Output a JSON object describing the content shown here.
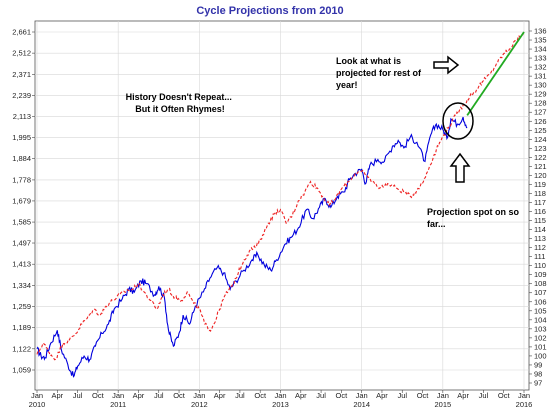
{
  "chart_data": {
    "type": "line",
    "title": "Cycle Projections from 2010",
    "xlabel": "",
    "ylabel_left": "",
    "ylabel_right": "",
    "grid": true,
    "x_range": [
      2010.0,
      2016.0
    ],
    "y_left_ticks": [
      "1,059",
      "1,122",
      "1,189",
      "1,259",
      "1,334",
      "1,413",
      "1,497",
      "1,585",
      "1,679",
      "1,778",
      "1,884",
      "1,995",
      "2,113",
      "2,239",
      "2,371",
      "2,512",
      "2,661"
    ],
    "y_right_ticks": [
      "97",
      "98",
      "99",
      "100",
      "101",
      "102",
      "103",
      "104",
      "105",
      "106",
      "107",
      "108",
      "109",
      "110",
      "111",
      "112",
      "113",
      "114",
      "115",
      "116",
      "117",
      "118",
      "119",
      "120",
      "121",
      "122",
      "123",
      "124",
      "125",
      "126",
      "127",
      "128",
      "129",
      "130",
      "131",
      "132",
      "133",
      "134",
      "135",
      "136"
    ],
    "x_months": [
      "Jan",
      "Apr",
      "Jul",
      "Oct",
      "Jan",
      "Apr",
      "Jul",
      "Oct",
      "Jan",
      "Apr",
      "Jul",
      "Oct",
      "Jan",
      "Apr",
      "Jul",
      "Oct",
      "Jan",
      "Apr",
      "Jul",
      "Oct",
      "Jan",
      "Apr",
      "Jul",
      "Oct",
      "Jan"
    ],
    "x_years": [
      "2010",
      "2011",
      "2012",
      "2013",
      "2014",
      "2015",
      "2016"
    ],
    "series": [
      {
        "color": "#0000dd",
        "style": "solid",
        "points": [
          [
            2010.0,
            1122
          ],
          [
            2010.05,
            1100
          ],
          [
            2010.1,
            1095
          ],
          [
            2010.17,
            1140
          ],
          [
            2010.25,
            1180
          ],
          [
            2010.3,
            1120
          ],
          [
            2010.38,
            1075
          ],
          [
            2010.45,
            1040
          ],
          [
            2010.5,
            1070
          ],
          [
            2010.58,
            1100
          ],
          [
            2010.65,
            1090
          ],
          [
            2010.72,
            1130
          ],
          [
            2010.8,
            1170
          ],
          [
            2010.88,
            1200
          ],
          [
            2010.95,
            1250
          ],
          [
            2011.05,
            1285
          ],
          [
            2011.13,
            1320
          ],
          [
            2011.2,
            1310
          ],
          [
            2011.28,
            1350
          ],
          [
            2011.35,
            1340
          ],
          [
            2011.45,
            1300
          ],
          [
            2011.5,
            1330
          ],
          [
            2011.57,
            1290
          ],
          [
            2011.62,
            1180
          ],
          [
            2011.68,
            1130
          ],
          [
            2011.75,
            1170
          ],
          [
            2011.8,
            1230
          ],
          [
            2011.88,
            1200
          ],
          [
            2011.95,
            1260
          ],
          [
            2012.05,
            1310
          ],
          [
            2012.13,
            1360
          ],
          [
            2012.22,
            1400
          ],
          [
            2012.3,
            1380
          ],
          [
            2012.38,
            1320
          ],
          [
            2012.45,
            1350
          ],
          [
            2012.55,
            1390
          ],
          [
            2012.65,
            1430
          ],
          [
            2012.72,
            1450
          ],
          [
            2012.8,
            1410
          ],
          [
            2012.88,
            1390
          ],
          [
            2012.95,
            1430
          ],
          [
            2013.05,
            1490
          ],
          [
            2013.13,
            1520
          ],
          [
            2013.22,
            1560
          ],
          [
            2013.32,
            1640
          ],
          [
            2013.4,
            1600
          ],
          [
            2013.48,
            1650
          ],
          [
            2013.55,
            1690
          ],
          [
            2013.62,
            1650
          ],
          [
            2013.7,
            1700
          ],
          [
            2013.78,
            1720
          ],
          [
            2013.85,
            1780
          ],
          [
            2013.92,
            1810
          ],
          [
            2014.0,
            1830
          ],
          [
            2014.05,
            1760
          ],
          [
            2014.1,
            1850
          ],
          [
            2014.2,
            1880
          ],
          [
            2014.28,
            1870
          ],
          [
            2014.38,
            1950
          ],
          [
            2014.45,
            1980
          ],
          [
            2014.52,
            1940
          ],
          [
            2014.6,
            2000
          ],
          [
            2014.68,
            1970
          ],
          [
            2014.78,
            1870
          ],
          [
            2014.85,
            2010
          ],
          [
            2014.92,
            2070
          ],
          [
            2015.0,
            2040
          ],
          [
            2015.05,
            1990
          ],
          [
            2015.1,
            2100
          ],
          [
            2015.18,
            2070
          ],
          [
            2015.25,
            2110
          ],
          [
            2015.3,
            2050
          ]
        ]
      },
      {
        "color": "#ee2222",
        "style": "dashed",
        "points": [
          [
            2010.0,
            1105
          ],
          [
            2010.08,
            1140
          ],
          [
            2010.15,
            1110
          ],
          [
            2010.23,
            1090
          ],
          [
            2010.32,
            1140
          ],
          [
            2010.4,
            1150
          ],
          [
            2010.48,
            1170
          ],
          [
            2010.55,
            1200
          ],
          [
            2010.62,
            1220
          ],
          [
            2010.7,
            1250
          ],
          [
            2010.78,
            1230
          ],
          [
            2010.85,
            1260
          ],
          [
            2010.93,
            1280
          ],
          [
            2011.02,
            1300
          ],
          [
            2011.1,
            1315
          ],
          [
            2011.18,
            1320
          ],
          [
            2011.25,
            1340
          ],
          [
            2011.32,
            1310
          ],
          [
            2011.4,
            1280
          ],
          [
            2011.48,
            1250
          ],
          [
            2011.55,
            1300
          ],
          [
            2011.62,
            1320
          ],
          [
            2011.7,
            1290
          ],
          [
            2011.78,
            1280
          ],
          [
            2011.85,
            1310
          ],
          [
            2011.93,
            1270
          ],
          [
            2012.0,
            1250
          ],
          [
            2012.07,
            1200
          ],
          [
            2012.13,
            1180
          ],
          [
            2012.18,
            1200
          ],
          [
            2012.25,
            1250
          ],
          [
            2012.32,
            1300
          ],
          [
            2012.4,
            1330
          ],
          [
            2012.48,
            1380
          ],
          [
            2012.55,
            1430
          ],
          [
            2012.63,
            1470
          ],
          [
            2012.7,
            1480
          ],
          [
            2012.78,
            1530
          ],
          [
            2012.85,
            1580
          ],
          [
            2012.92,
            1620
          ],
          [
            2013.0,
            1640
          ],
          [
            2013.07,
            1580
          ],
          [
            2013.15,
            1620
          ],
          [
            2013.22,
            1680
          ],
          [
            2013.3,
            1720
          ],
          [
            2013.37,
            1770
          ],
          [
            2013.45,
            1740
          ],
          [
            2013.52,
            1700
          ],
          [
            2013.6,
            1660
          ],
          [
            2013.68,
            1690
          ],
          [
            2013.76,
            1740
          ],
          [
            2013.84,
            1770
          ],
          [
            2013.92,
            1810
          ],
          [
            2014.0,
            1820
          ],
          [
            2014.08,
            1790
          ],
          [
            2014.16,
            1760
          ],
          [
            2014.24,
            1740
          ],
          [
            2014.32,
            1760
          ],
          [
            2014.42,
            1740
          ],
          [
            2014.52,
            1720
          ],
          [
            2014.6,
            1700
          ],
          [
            2014.68,
            1730
          ],
          [
            2014.76,
            1770
          ],
          [
            2014.84,
            1850
          ],
          [
            2014.92,
            1930
          ],
          [
            2015.0,
            2000
          ],
          [
            2015.08,
            2060
          ],
          [
            2015.16,
            2120
          ],
          [
            2015.25,
            2180
          ],
          [
            2015.33,
            2230
          ],
          [
            2015.42,
            2280
          ],
          [
            2015.5,
            2330
          ],
          [
            2015.58,
            2370
          ],
          [
            2015.66,
            2440
          ],
          [
            2015.74,
            2500
          ],
          [
            2015.82,
            2540
          ],
          [
            2015.9,
            2600
          ],
          [
            2016.0,
            2661
          ]
        ]
      },
      {
        "color": "#22aa22",
        "style": "solid",
        "points": [
          [
            2015.3,
            2120
          ],
          [
            2016.0,
            2661
          ]
        ]
      }
    ],
    "annotations": [
      {
        "lines": [
          "History Doesn't Repeat...",
          "But it Often Rhymes!"
        ]
      },
      {
        "lines": [
          "Look at what is",
          "projected for rest of",
          "year!"
        ]
      },
      {
        "lines": [
          "Projection spot on so",
          "far..."
        ]
      }
    ]
  }
}
